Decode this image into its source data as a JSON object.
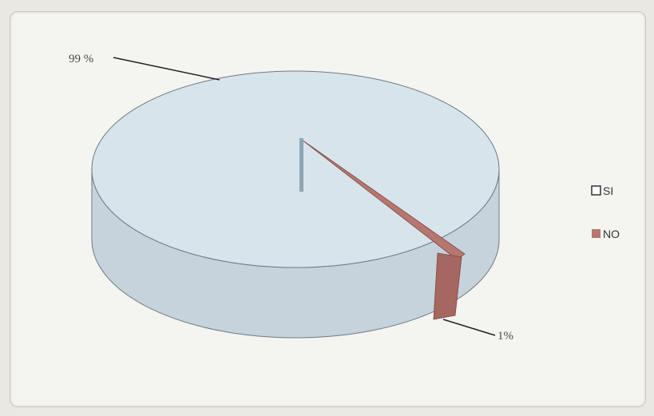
{
  "chart_data": {
    "type": "pie",
    "categories": [
      "SI",
      "NO"
    ],
    "values": [
      99,
      1
    ],
    "data_labels": [
      "99 %",
      "1%"
    ],
    "legend": [
      "SI",
      "NO"
    ],
    "legend_position": "right",
    "colors": {
      "SI": "#d8e4ec",
      "NO": "#b7766f"
    }
  }
}
